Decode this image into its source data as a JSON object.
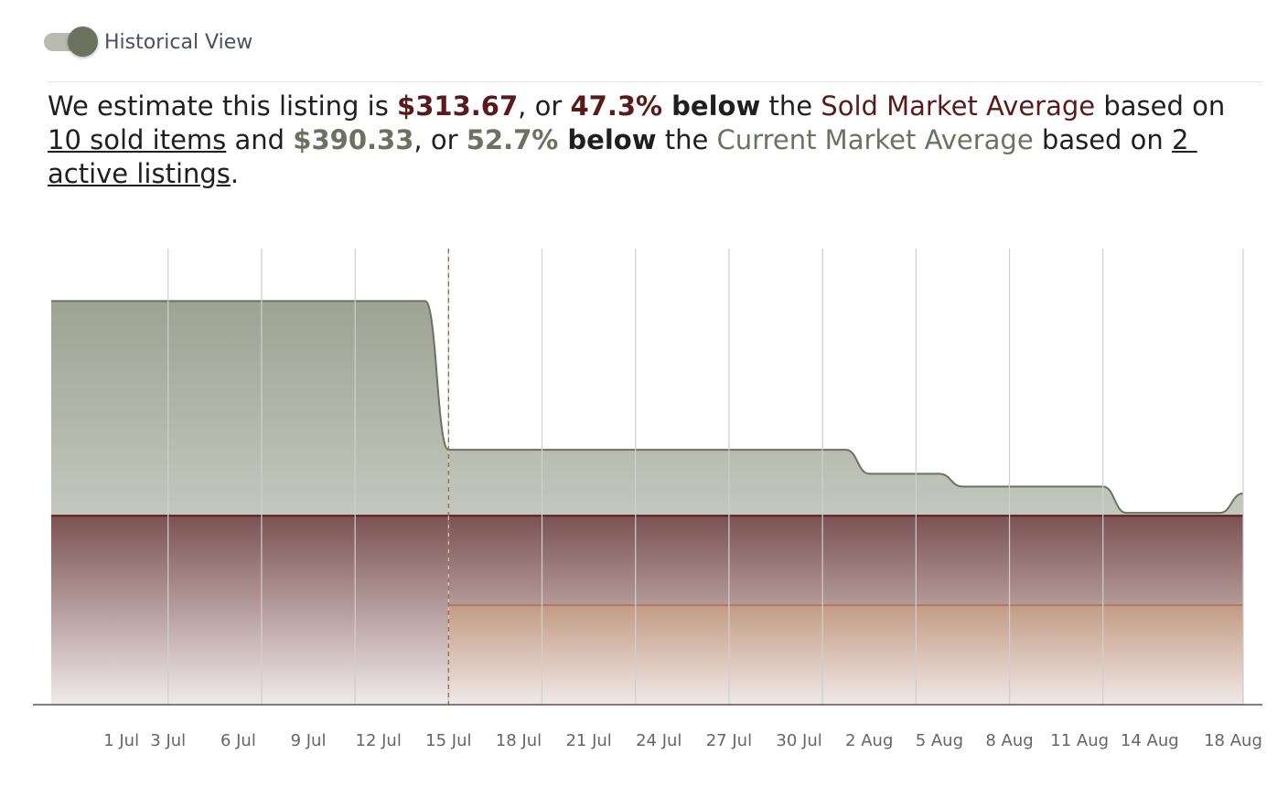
{
  "toggle": {
    "label": "Historical View"
  },
  "summary": {
    "segments": [
      {
        "text": "We estimate this listing is ",
        "style": "plain"
      },
      {
        "text": "$313.67",
        "style": "sold-bold"
      },
      {
        "text": ", or ",
        "style": "plain"
      },
      {
        "text": "47.3%",
        "style": "sold-bold"
      },
      {
        "text": " below",
        "style": "bold"
      },
      {
        "text": " the ",
        "style": "plain"
      },
      {
        "text": "Sold Market Average",
        "style": "sold"
      },
      {
        "text": " based on ",
        "style": "plain"
      },
      {
        "text": "10 sold items",
        "style": "link"
      },
      {
        "text": " and ",
        "style": "plain"
      },
      {
        "text": "$390.33",
        "style": "current-bold"
      },
      {
        "text": ", or ",
        "style": "plain"
      },
      {
        "text": "52.7%",
        "style": "current-bold"
      },
      {
        "text": " below",
        "style": "bold"
      },
      {
        "text": " the ",
        "style": "plain"
      },
      {
        "text": "Current Market Average",
        "style": "current"
      },
      {
        "text": " based on ",
        "style": "plain"
      },
      {
        "text": "2 active listings",
        "style": "link"
      },
      {
        "text": ".",
        "style": "plain"
      }
    ]
  },
  "chart_data": {
    "type": "area",
    "xlim": [
      "28 Jun",
      "18 Aug"
    ],
    "ylim": [
      0,
      1600
    ],
    "xticks": [
      "1 Jul",
      "3 Jul",
      "6 Jul",
      "9 Jul",
      "12 Jul",
      "15 Jul",
      "18 Jul",
      "21 Jul",
      "24 Jul",
      "27 Jul",
      "30 Jul",
      "2 Aug",
      "5 Aug",
      "8 Aug",
      "11 Aug",
      "14 Aug",
      "18 Aug"
    ],
    "grid_x": [
      "3 Jul",
      "7 Jul",
      "11 Jul",
      "15 Jul",
      "19 Jul",
      "23 Jul",
      "27 Jul",
      "31 Jul",
      "4 Aug",
      "8 Aug",
      "12 Aug",
      "18 Aug"
    ],
    "marker_x": "15 Jul",
    "marker_color": "#a0704f",
    "series": [
      {
        "name": "Current Market Average",
        "color": "#6b7260",
        "fill": [
          "#9ea393",
          "#e6e7e3"
        ],
        "x": [
          "28 Jun",
          "14 Jul",
          "15 Jul",
          "1 Aug",
          "2 Aug",
          "5 Aug",
          "6 Aug",
          "12 Aug",
          "13 Aug",
          "17 Aug",
          "18 Aug"
        ],
        "values": [
          1416,
          1416,
          894,
          894,
          810,
          810,
          765,
          765,
          673,
          673,
          741
        ]
      },
      {
        "name": "Sold Market Average",
        "color": "#5a1a1a",
        "fill": [
          "#7c5252",
          "#f1eaea"
        ],
        "x": [
          "28 Jun",
          "18 Aug"
        ],
        "values": [
          663,
          663
        ]
      },
      {
        "color": "#b47a58",
        "fill": [
          "#c29c84",
          "#f1e8e6"
        ],
        "x": [
          "15 Jul",
          "18 Aug"
        ],
        "values": [
          349,
          349
        ]
      }
    ]
  }
}
